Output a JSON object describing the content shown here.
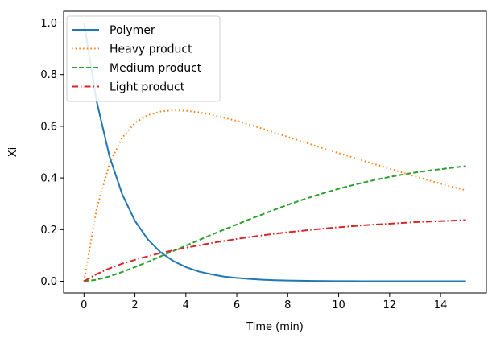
{
  "chart_data": {
    "type": "line",
    "xlabel": "Time (min)",
    "ylabel": "Xi",
    "xlim": [
      -0.8,
      15.8
    ],
    "ylim": [
      -0.045,
      1.045
    ],
    "xticks": [
      0,
      2,
      4,
      6,
      8,
      10,
      12,
      14
    ],
    "yticks": [
      0.0,
      0.2,
      0.4,
      0.6,
      0.8,
      1.0
    ],
    "grid": false,
    "legend": "top-left",
    "series": [
      {
        "name": "Polymer",
        "color": "#1f77b4",
        "style": "solid",
        "x": [
          0,
          0.5,
          1,
          1.5,
          2,
          2.5,
          3,
          3.5,
          4,
          4.5,
          5,
          5.5,
          6,
          6.5,
          7,
          7.5,
          8,
          8.5,
          9,
          9.5,
          10,
          10.5,
          11,
          11.5,
          12,
          12.5,
          13,
          13.5,
          14,
          14.5,
          15
        ],
        "y": [
          1.0,
          0.695,
          0.484,
          0.337,
          0.234,
          0.163,
          0.113,
          0.079,
          0.055,
          0.038,
          0.027,
          0.018,
          0.013,
          0.009,
          0.006,
          0.004,
          0.003,
          0.002,
          0.0015,
          0.001,
          0.0007,
          0.0005,
          0.0003,
          0.0002,
          0.0002,
          0.0001,
          0.0001,
          0.0,
          0.0,
          0.0,
          0.0
        ]
      },
      {
        "name": "Heavy product",
        "color": "#ff7f0e",
        "style": "dotted",
        "x": [
          0,
          0.5,
          1,
          1.5,
          2,
          2.5,
          3,
          3.5,
          4,
          4.5,
          5,
          5.5,
          6,
          6.5,
          7,
          7.5,
          8,
          8.5,
          9,
          9.5,
          10,
          10.5,
          11,
          11.5,
          12,
          12.5,
          13,
          13.5,
          14,
          14.5,
          15
        ],
        "y": [
          0.0,
          0.282,
          0.455,
          0.556,
          0.613,
          0.643,
          0.657,
          0.662,
          0.66,
          0.654,
          0.645,
          0.633,
          0.621,
          0.606,
          0.591,
          0.575,
          0.559,
          0.543,
          0.527,
          0.511,
          0.496,
          0.481,
          0.466,
          0.451,
          0.436,
          0.421,
          0.406,
          0.392,
          0.378,
          0.365,
          0.352
        ]
      },
      {
        "name": "Medium product",
        "color": "#2ca02c",
        "style": "dashed",
        "x": [
          0,
          0.5,
          1,
          1.5,
          2,
          2.5,
          3,
          3.5,
          4,
          4.5,
          5,
          5.5,
          6,
          6.5,
          7,
          7.5,
          8,
          8.5,
          9,
          9.5,
          10,
          10.5,
          11,
          11.5,
          12,
          12.5,
          13,
          13.5,
          14,
          14.5,
          15
        ],
        "y": [
          0.0,
          0.006,
          0.019,
          0.036,
          0.055,
          0.075,
          0.096,
          0.117,
          0.138,
          0.159,
          0.18,
          0.2,
          0.22,
          0.24,
          0.259,
          0.278,
          0.296,
          0.313,
          0.329,
          0.344,
          0.358,
          0.371,
          0.383,
          0.394,
          0.404,
          0.413,
          0.421,
          0.428,
          0.434,
          0.44,
          0.446
        ]
      },
      {
        "name": "Light product",
        "color": "#d62728",
        "style": "dashdot",
        "x": [
          0,
          0.5,
          1,
          1.5,
          2,
          2.5,
          3,
          3.5,
          4,
          4.5,
          5,
          5.5,
          6,
          6.5,
          7,
          7.5,
          8,
          8.5,
          9,
          9.5,
          10,
          10.5,
          11,
          11.5,
          12,
          12.5,
          13,
          13.5,
          14,
          14.5,
          15
        ],
        "y": [
          0.0,
          0.028,
          0.05,
          0.068,
          0.083,
          0.097,
          0.109,
          0.12,
          0.13,
          0.139,
          0.148,
          0.156,
          0.164,
          0.171,
          0.178,
          0.184,
          0.19,
          0.195,
          0.2,
          0.205,
          0.209,
          0.213,
          0.217,
          0.22,
          0.223,
          0.226,
          0.229,
          0.231,
          0.233,
          0.235,
          0.237
        ]
      }
    ]
  }
}
